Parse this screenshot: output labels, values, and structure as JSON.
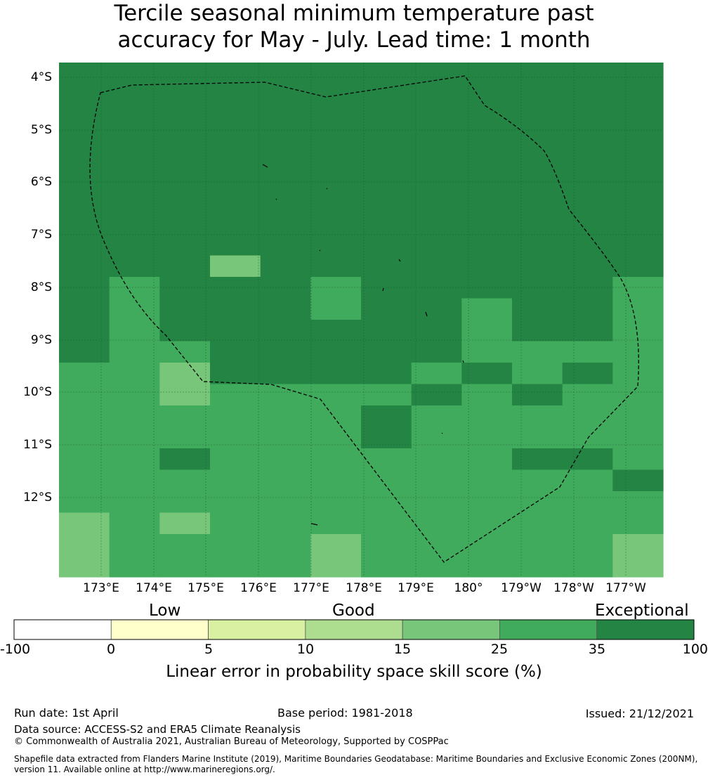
{
  "title_line1": "Tercile seasonal minimum temperature past",
  "title_line2": "accuracy for May - July. Lead time: 1 month",
  "map": {
    "lat_labels": [
      "4°S",
      "5°S",
      "6°S",
      "7°S",
      "8°S",
      "9°S",
      "10°S",
      "11°S",
      "12°S"
    ],
    "lon_labels": [
      "173°E",
      "174°E",
      "175°E",
      "176°E",
      "177°E",
      "178°E",
      "179°E",
      "180°",
      "179°W",
      "178°W",
      "177°W"
    ],
    "colors": {
      "very_high": "#238443",
      "high": "#41ab5d",
      "medium": "#78c679",
      "grid": "#1a5e2e",
      "boundary": "#000000"
    },
    "cell_rows": [
      "EEEEEEEEEEEE",
      "EEEEEEEEEEEE",
      "EEEEEEEEEEEE",
      "EEEEEEEEEEEE",
      "EEEEEEEEEEEE",
      "EEEEEEEEEEEE",
      "EEEEEEEEEEEE",
      "EEEEEEEEEEEE",
      "EEEEEEEEEEEE",
      "EEEMEEEEEEEE",
      "EGEEEGEEEEEG",
      "EGEEEGEEGEEG",
      "EGEEEEEEGEEG",
      "EGGEEEEEGGGG",
      "GGMEEEEGEGEG",
      "GGMGGGGEGEGG",
      "GGGGGGEGGGGG",
      "GGGGGGEGGGGG",
      "GGEGGGGGGEEG",
      "GGGGGGGGGGGE",
      "GGGGGGGGGGGG",
      "MGMGGGGGGGGG",
      "MGGGGMGGGGGM",
      "MGGGGMGGGGGM"
    ]
  },
  "colorbar": {
    "categories": [
      "Low",
      "Good",
      "Exceptional"
    ],
    "ticks": [
      "-100",
      "0",
      "5",
      "10",
      "15",
      "25",
      "35",
      "100"
    ],
    "colors": [
      "#ffffff",
      "#ffffcc",
      "#d9f0a3",
      "#addd8e",
      "#78c679",
      "#41ab5d",
      "#238443"
    ],
    "label": "Linear error in probability space skill score (%)"
  },
  "footer": {
    "run_date": "Run date: 1st April",
    "base_period": "Base period: 1981-2018",
    "issued": "Issued: 21/12/2021",
    "data_source": "Data source: ACCESS-S2 and ERA5 Climate Reanalysis",
    "copyright": "© Commonwealth of Australia 2021, Australian Bureau of Meteorology, Supported by COSPPac",
    "shapefile_line1": "Shapefile data extracted from Flanders Marine Institute (2019), Maritime Boundaries Geodatabase: Maritime Boundaries and Exclusive Economic Zones (200NM),",
    "shapefile_line2": "version 11. Available online at http://www.marineregions.org/."
  }
}
